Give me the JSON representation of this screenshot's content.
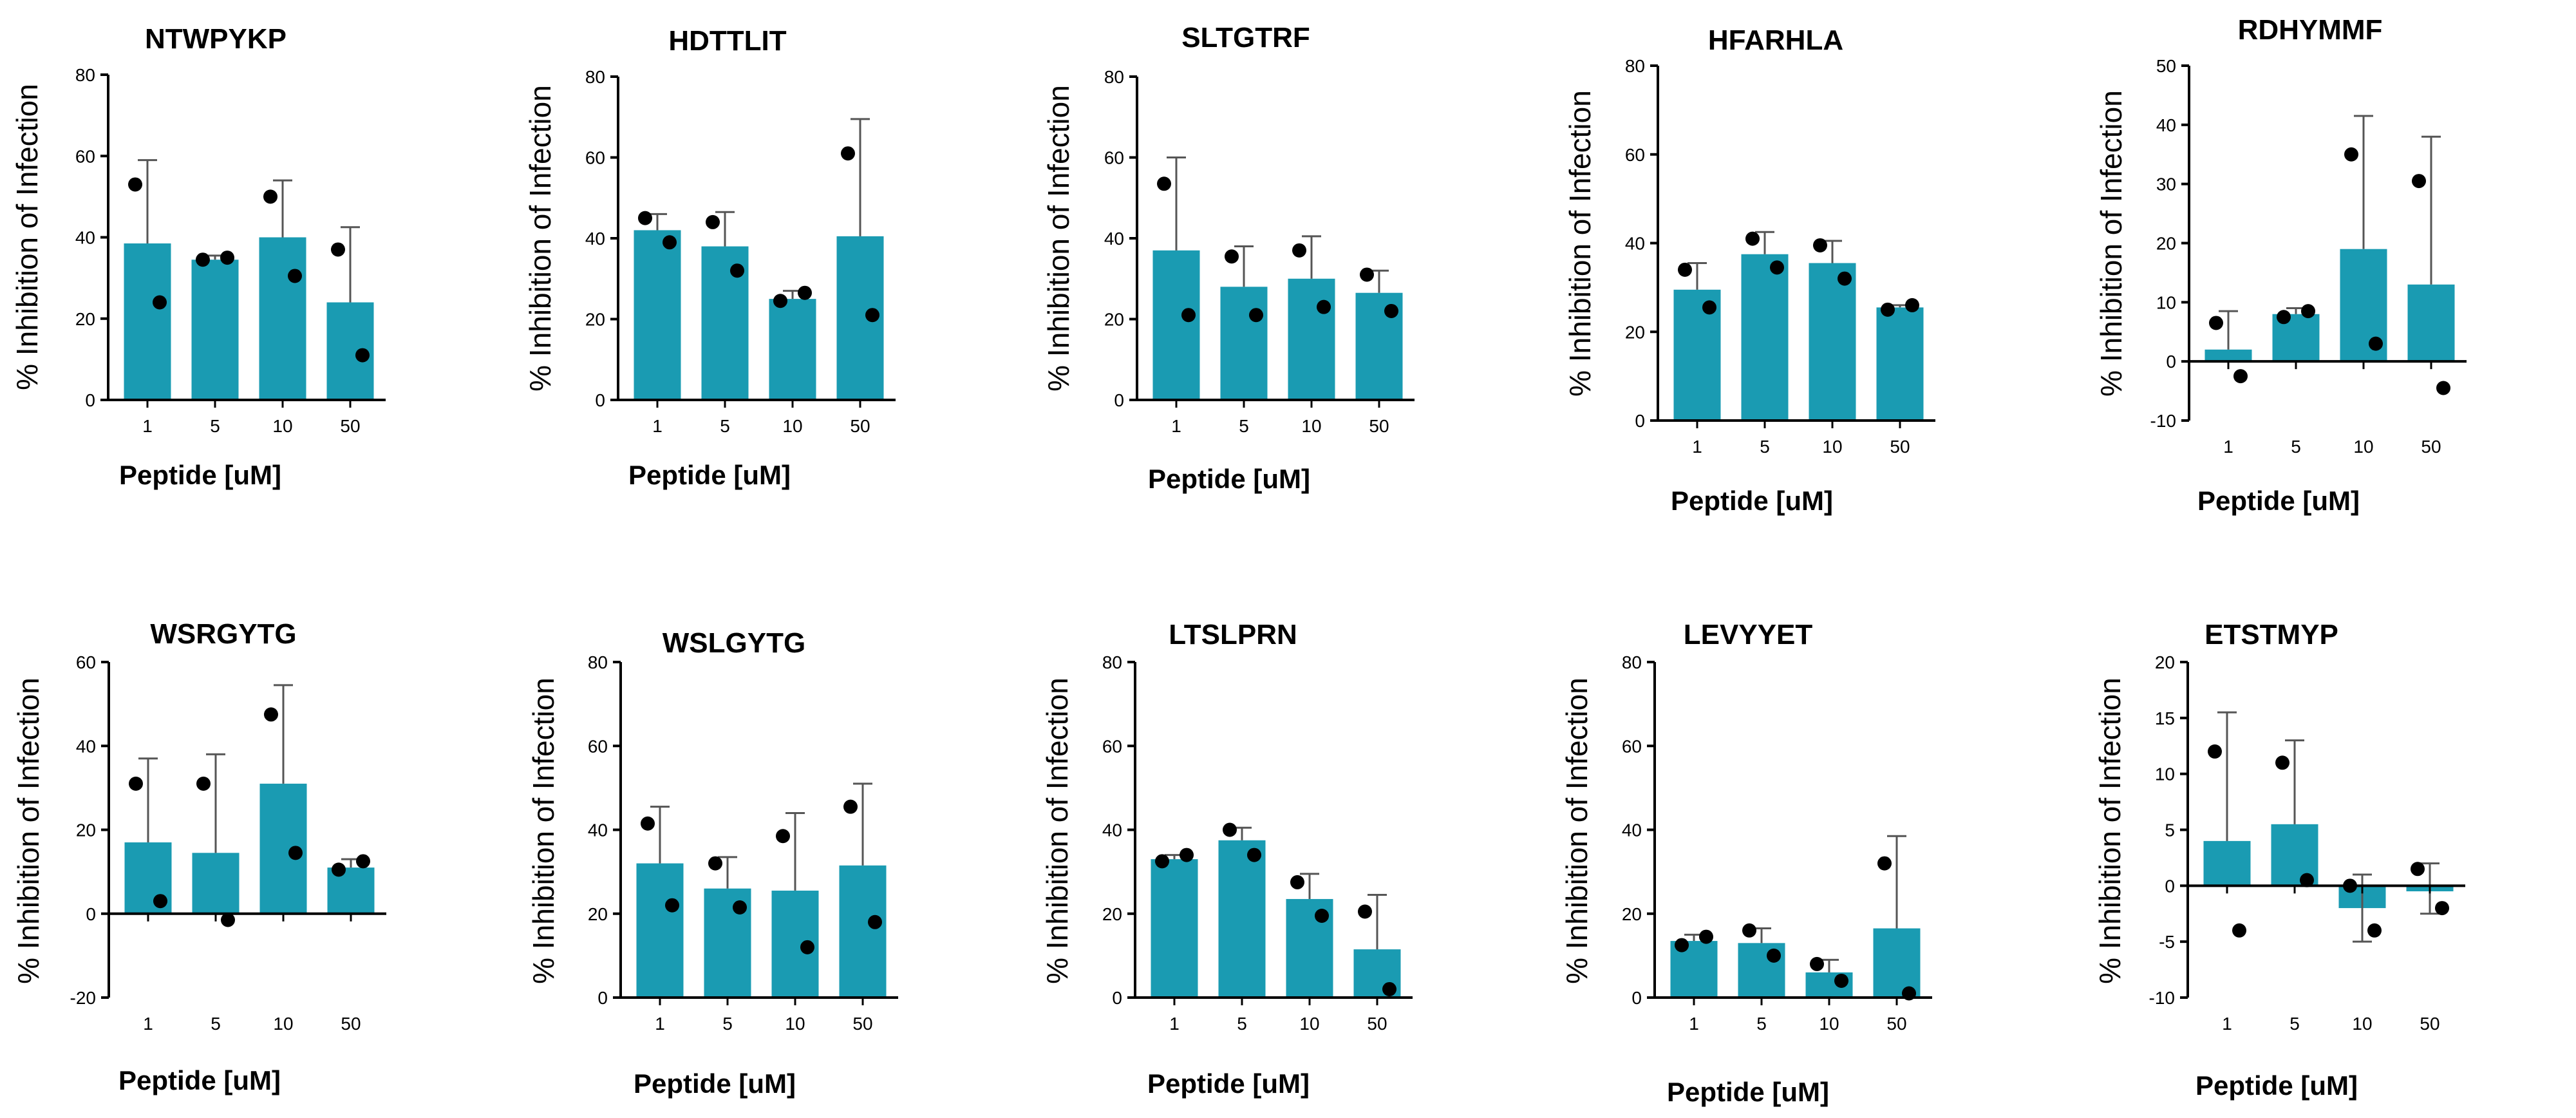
{
  "colors": {
    "bar": "#1a9bb2",
    "axis": "#000000",
    "point": "#000000",
    "error": "#555555"
  },
  "chart_data": [
    {
      "type": "bar",
      "title": "NTWPYKP",
      "xlabel": "Peptide [uM]",
      "ylabel": "% Inhibition of Infection",
      "categories": [
        "1",
        "5",
        "10",
        "50"
      ],
      "values": [
        38.5,
        34.5,
        40,
        24
      ],
      "error_upper": [
        59,
        35.5,
        54,
        42.5
      ],
      "points": [
        [
          53,
          24
        ],
        [
          34.5,
          35
        ],
        [
          50,
          30.5
        ],
        [
          37,
          11
        ]
      ],
      "ylim": [
        0,
        80
      ],
      "yticks": [
        "0",
        "20",
        "40",
        "60",
        "80"
      ]
    },
    {
      "type": "bar",
      "title": "HDTTLIT",
      "xlabel": "Peptide [uM]",
      "ylabel": "% Inhibition of Infection",
      "categories": [
        "1",
        "5",
        "10",
        "50"
      ],
      "values": [
        42,
        38,
        25,
        40.5
      ],
      "error_upper": [
        46,
        46.5,
        27,
        69.5
      ],
      "points": [
        [
          45,
          39
        ],
        [
          44,
          32
        ],
        [
          24.5,
          26.5
        ],
        [
          61,
          21
        ]
      ],
      "ylim": [
        0,
        80
      ],
      "yticks": [
        "0",
        "20",
        "40",
        "60",
        "80"
      ]
    },
    {
      "type": "bar",
      "title": "SLTGTRF",
      "xlabel": "Peptide [uM]",
      "ylabel": "% Inhibition of Infection",
      "categories": [
        "1",
        "5",
        "10",
        "50"
      ],
      "values": [
        37,
        28,
        30,
        26.5
      ],
      "error_upper": [
        60,
        38,
        40.5,
        32
      ],
      "points": [
        [
          53.5,
          21
        ],
        [
          35.5,
          21
        ],
        [
          37,
          23
        ],
        [
          31,
          22
        ]
      ],
      "ylim": [
        0,
        80
      ],
      "yticks": [
        "0",
        "20",
        "40",
        "60",
        "80"
      ]
    },
    {
      "type": "bar",
      "title": "HFARHLA",
      "xlabel": "Peptide [uM]",
      "ylabel": "% Inhibition of Infection",
      "categories": [
        "1",
        "5",
        "10",
        "50"
      ],
      "values": [
        29.5,
        37.5,
        35.5,
        25.5
      ],
      "error_upper": [
        35.5,
        42.5,
        40.5,
        26
      ],
      "points": [
        [
          34,
          25.5
        ],
        [
          41,
          34.5
        ],
        [
          39.5,
          32
        ],
        [
          25,
          26
        ]
      ],
      "ylim": [
        0,
        80
      ],
      "yticks": [
        "0",
        "20",
        "40",
        "60",
        "80"
      ]
    },
    {
      "type": "bar",
      "title": "RDHYMMF",
      "xlabel": "Peptide [uM]",
      "ylabel": "% Inhibition of Infection",
      "categories": [
        "1",
        "5",
        "10",
        "50"
      ],
      "values": [
        2,
        8,
        19,
        13
      ],
      "error_upper": [
        8.5,
        9,
        41.5,
        38
      ],
      "points": [
        [
          6.5,
          -2.5
        ],
        [
          7.5,
          8.5
        ],
        [
          35,
          3
        ],
        [
          30.5,
          -4.5
        ]
      ],
      "ylim": [
        -10,
        50
      ],
      "yticks": [
        "-10",
        "0",
        "10",
        "20",
        "30",
        "40",
        "50"
      ]
    },
    {
      "type": "bar",
      "title": "WSRGYTG",
      "xlabel": "Peptide [uM]",
      "ylabel": "% Inhibition of Infection",
      "categories": [
        "1",
        "5",
        "10",
        "50"
      ],
      "values": [
        17,
        14.5,
        31,
        11
      ],
      "error_upper": [
        37,
        38,
        54.5,
        13
      ],
      "points": [
        [
          31,
          3
        ],
        [
          31,
          -1.5
        ],
        [
          47.5,
          14.5
        ],
        [
          10.5,
          12.5
        ]
      ],
      "ylim": [
        -20,
        60
      ],
      "yticks": [
        "-20",
        "0",
        "20",
        "40",
        "60"
      ]
    },
    {
      "type": "bar",
      "title": "WSLGYTG",
      "xlabel": "Peptide [uM]",
      "ylabel": "% Inhibition of Infection",
      "categories": [
        "1",
        "5",
        "10",
        "50"
      ],
      "values": [
        32,
        26,
        25.5,
        31.5
      ],
      "error_upper": [
        45.5,
        33.5,
        44,
        51
      ],
      "points": [
        [
          41.5,
          22
        ],
        [
          32,
          21.5
        ],
        [
          38.5,
          12
        ],
        [
          45.5,
          18
        ]
      ],
      "ylim": [
        0,
        80
      ],
      "yticks": [
        "0",
        "20",
        "40",
        "60",
        "80"
      ]
    },
    {
      "type": "bar",
      "title": "LTSLPRN",
      "xlabel": "Peptide [uM]",
      "ylabel": "% Inhibition of Infection",
      "categories": [
        "1",
        "5",
        "10",
        "50"
      ],
      "values": [
        33,
        37.5,
        23.5,
        11.5
      ],
      "error_upper": [
        34,
        40.5,
        29.5,
        24.5
      ],
      "points": [
        [
          32.5,
          34
        ],
        [
          40,
          34
        ],
        [
          27.5,
          19.5
        ],
        [
          20.5,
          2
        ]
      ],
      "ylim": [
        0,
        80
      ],
      "yticks": [
        "0",
        "20",
        "40",
        "60",
        "80"
      ]
    },
    {
      "type": "bar",
      "title": "LEVYYET",
      "xlabel": "Peptide [uM]",
      "ylabel": "% Inhibition of Infection",
      "categories": [
        "1",
        "5",
        "10",
        "50"
      ],
      "values": [
        13.5,
        13,
        6,
        16.5
      ],
      "error_upper": [
        15,
        16.5,
        9,
        38.5
      ],
      "points": [
        [
          12.5,
          14.5
        ],
        [
          16,
          10
        ],
        [
          8,
          4
        ],
        [
          32,
          1
        ]
      ],
      "ylim": [
        0,
        80
      ],
      "yticks": [
        "0",
        "20",
        "40",
        "60",
        "80"
      ]
    },
    {
      "type": "bar",
      "title": "ETSTMYP",
      "xlabel": "Peptide [uM]",
      "ylabel": "% Inhibition of Infection",
      "categories": [
        "1",
        "5",
        "10",
        "50"
      ],
      "values": [
        4,
        5.5,
        -2,
        -0.5
      ],
      "error_upper": [
        15.5,
        13,
        1,
        2
      ],
      "error_lower": [
        null,
        null,
        -5,
        -2.5
      ],
      "points": [
        [
          12,
          -4
        ],
        [
          11,
          0.5
        ],
        [
          0,
          -4
        ],
        [
          1.5,
          -2
        ]
      ],
      "ylim": [
        -10,
        20
      ],
      "yticks": [
        "-10",
        "-5",
        "0",
        "5",
        "10",
        "15",
        "20"
      ]
    }
  ]
}
